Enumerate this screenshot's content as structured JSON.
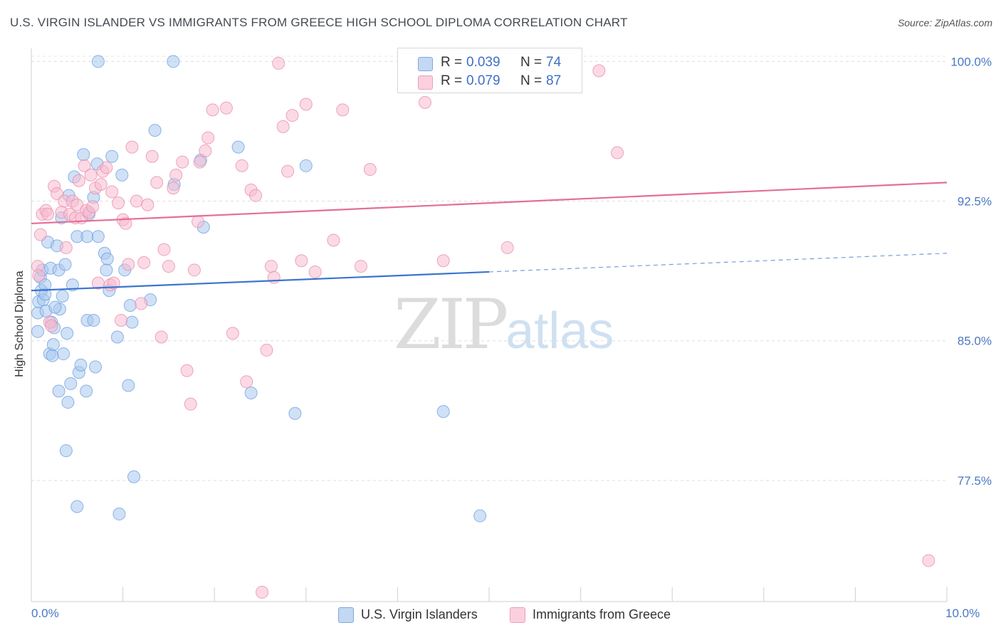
{
  "title": "U.S. VIRGIN ISLANDER VS IMMIGRANTS FROM GREECE HIGH SCHOOL DIPLOMA CORRELATION CHART",
  "source": "Source: ZipAtlas.com",
  "watermark": {
    "zip": "ZIP",
    "atlas": "atlas"
  },
  "legend": {
    "rows": [
      {
        "r_label": "R = ",
        "r_value": "0.039",
        "n_label": "N = ",
        "n_value": "74",
        "color": "#aac8ef"
      },
      {
        "r_label": "R = ",
        "r_value": "0.079",
        "n_label": "N = ",
        "n_value": "87",
        "color": "#f8bcd0"
      }
    ]
  },
  "bottom_legend": [
    {
      "label": "U.S. Virgin Islanders",
      "color": "#aac8ef"
    },
    {
      "label": "Immigrants from Greece",
      "color": "#f8bcd0"
    }
  ],
  "chart_data": {
    "type": "scatter",
    "title": "U.S. VIRGIN ISLANDER VS IMMIGRANTS FROM GREECE HIGH SCHOOL DIPLOMA CORRELATION CHART",
    "xlabel": "",
    "ylabel": "High School Diploma",
    "x_tick_labels": [
      "0.0%",
      "10.0%"
    ],
    "y_tick_labels": [
      "100.0%",
      "92.5%",
      "85.0%",
      "77.5%"
    ],
    "y_ticks": [
      100.0,
      92.5,
      85.0,
      77.5
    ],
    "xlim": [
      0,
      10
    ],
    "ylim": [
      71.0,
      100.7
    ],
    "grid": true,
    "legend_position": "top-center",
    "series": [
      {
        "name": "U.S. Virgin Islanders",
        "color": "#6a9ee0",
        "fill": "#aac8ef",
        "r": 0.039,
        "n": 74,
        "trend": {
          "x0": 0.0,
          "y0": 87.7,
          "x1": 5.0,
          "y1": 88.7,
          "dash_to_x": 10.0,
          "dash_to_y": 89.7
        },
        "points": [
          [
            0.07,
            86.5
          ],
          [
            0.07,
            85.5
          ],
          [
            0.08,
            87.1
          ],
          [
            0.1,
            88.4
          ],
          [
            0.11,
            87.7
          ],
          [
            0.12,
            88.8
          ],
          [
            0.13,
            87.2
          ],
          [
            0.15,
            87.5
          ],
          [
            0.16,
            86.6
          ],
          [
            0.18,
            90.3
          ],
          [
            0.2,
            84.3
          ],
          [
            0.21,
            88.9
          ],
          [
            0.22,
            86.0
          ],
          [
            0.23,
            84.2
          ],
          [
            0.24,
            84.8
          ],
          [
            0.25,
            85.7
          ],
          [
            0.28,
            90.1
          ],
          [
            0.3,
            82.3
          ],
          [
            0.3,
            88.8
          ],
          [
            0.31,
            86.7
          ],
          [
            0.33,
            91.6
          ],
          [
            0.34,
            87.4
          ],
          [
            0.35,
            84.3
          ],
          [
            0.37,
            89.1
          ],
          [
            0.38,
            79.1
          ],
          [
            0.39,
            85.4
          ],
          [
            0.4,
            81.7
          ],
          [
            0.41,
            92.8
          ],
          [
            0.43,
            82.7
          ],
          [
            0.45,
            88.0
          ],
          [
            0.47,
            93.8
          ],
          [
            0.5,
            76.1
          ],
          [
            0.5,
            90.6
          ],
          [
            0.52,
            83.3
          ],
          [
            0.54,
            83.7
          ],
          [
            0.57,
            95.0
          ],
          [
            0.6,
            82.3
          ],
          [
            0.61,
            86.1
          ],
          [
            0.61,
            90.6
          ],
          [
            0.63,
            91.8
          ],
          [
            0.68,
            92.7
          ],
          [
            0.68,
            86.1
          ],
          [
            0.7,
            83.6
          ],
          [
            0.72,
            94.5
          ],
          [
            0.73,
            100.0
          ],
          [
            0.73,
            90.6
          ],
          [
            0.8,
            89.7
          ],
          [
            0.82,
            88.8
          ],
          [
            0.83,
            89.4
          ],
          [
            0.85,
            87.7
          ],
          [
            0.88,
            94.9
          ],
          [
            0.94,
            85.2
          ],
          [
            0.96,
            75.7
          ],
          [
            0.99,
            93.9
          ],
          [
            1.02,
            88.8
          ],
          [
            1.06,
            82.6
          ],
          [
            1.08,
            86.9
          ],
          [
            1.1,
            86.0
          ],
          [
            1.12,
            77.7
          ],
          [
            1.3,
            87.2
          ],
          [
            1.35,
            96.3
          ],
          [
            1.55,
            100.0
          ],
          [
            1.56,
            93.4
          ],
          [
            1.85,
            94.7
          ],
          [
            1.88,
            91.1
          ],
          [
            2.26,
            95.4
          ],
          [
            2.4,
            82.2
          ],
          [
            2.88,
            81.1
          ],
          [
            3.0,
            94.4
          ],
          [
            4.5,
            81.2
          ],
          [
            4.9,
            75.6
          ],
          [
            5.0,
            100.0
          ],
          [
            0.15,
            88.0
          ],
          [
            0.26,
            86.8
          ]
        ]
      },
      {
        "name": "Immigrants from Greece",
        "color": "#e889a8",
        "fill": "#f8bcd0",
        "r": 0.079,
        "n": 87,
        "trend": {
          "x0": 0.0,
          "y0": 91.3,
          "x1": 10.0,
          "y1": 93.5
        },
        "points": [
          [
            0.07,
            89.0
          ],
          [
            0.08,
            88.5
          ],
          [
            0.1,
            90.7
          ],
          [
            0.12,
            91.8
          ],
          [
            0.16,
            92.0
          ],
          [
            0.18,
            91.8
          ],
          [
            0.2,
            86.0
          ],
          [
            0.22,
            85.8
          ],
          [
            0.25,
            93.3
          ],
          [
            0.28,
            92.9
          ],
          [
            0.33,
            91.9
          ],
          [
            0.36,
            92.5
          ],
          [
            0.38,
            90.0
          ],
          [
            0.42,
            91.8
          ],
          [
            0.45,
            92.5
          ],
          [
            0.48,
            91.6
          ],
          [
            0.5,
            92.3
          ],
          [
            0.52,
            93.6
          ],
          [
            0.55,
            91.6
          ],
          [
            0.58,
            94.4
          ],
          [
            0.6,
            92.0
          ],
          [
            0.63,
            91.9
          ],
          [
            0.65,
            93.9
          ],
          [
            0.67,
            92.2
          ],
          [
            0.7,
            93.2
          ],
          [
            0.73,
            88.1
          ],
          [
            0.76,
            93.4
          ],
          [
            0.78,
            94.1
          ],
          [
            0.82,
            94.3
          ],
          [
            0.86,
            88.0
          ],
          [
            0.88,
            93.0
          ],
          [
            0.9,
            88.1
          ],
          [
            0.95,
            92.4
          ],
          [
            0.98,
            86.1
          ],
          [
            1.0,
            91.5
          ],
          [
            1.03,
            91.3
          ],
          [
            1.06,
            89.1
          ],
          [
            1.1,
            95.4
          ],
          [
            1.15,
            92.5
          ],
          [
            1.2,
            87.0
          ],
          [
            1.23,
            89.2
          ],
          [
            1.27,
            92.3
          ],
          [
            1.32,
            94.9
          ],
          [
            1.37,
            93.5
          ],
          [
            1.42,
            85.2
          ],
          [
            1.45,
            89.9
          ],
          [
            1.5,
            89.0
          ],
          [
            1.55,
            93.2
          ],
          [
            1.58,
            93.9
          ],
          [
            1.65,
            94.6
          ],
          [
            1.7,
            83.4
          ],
          [
            1.74,
            81.6
          ],
          [
            1.78,
            88.8
          ],
          [
            1.82,
            91.4
          ],
          [
            1.84,
            94.6
          ],
          [
            1.9,
            95.2
          ],
          [
            1.93,
            95.9
          ],
          [
            1.98,
            97.4
          ],
          [
            2.13,
            97.5
          ],
          [
            2.2,
            85.4
          ],
          [
            2.3,
            94.4
          ],
          [
            2.35,
            82.8
          ],
          [
            2.4,
            93.1
          ],
          [
            2.45,
            92.8
          ],
          [
            2.52,
            71.5
          ],
          [
            2.57,
            84.5
          ],
          [
            2.62,
            89.0
          ],
          [
            2.65,
            88.4
          ],
          [
            2.7,
            99.9
          ],
          [
            2.75,
            96.5
          ],
          [
            2.8,
            94.1
          ],
          [
            2.85,
            97.1
          ],
          [
            2.95,
            89.3
          ],
          [
            3.0,
            97.7
          ],
          [
            3.1,
            88.7
          ],
          [
            3.3,
            90.4
          ],
          [
            3.4,
            97.4
          ],
          [
            3.6,
            89.0
          ],
          [
            3.7,
            94.2
          ],
          [
            4.3,
            97.8
          ],
          [
            4.5,
            89.3
          ],
          [
            5.2,
            90.0
          ],
          [
            5.6,
            100.0
          ],
          [
            5.8,
            99.9
          ],
          [
            6.2,
            99.5
          ],
          [
            6.4,
            95.1
          ],
          [
            9.8,
            73.2
          ]
        ]
      }
    ]
  }
}
